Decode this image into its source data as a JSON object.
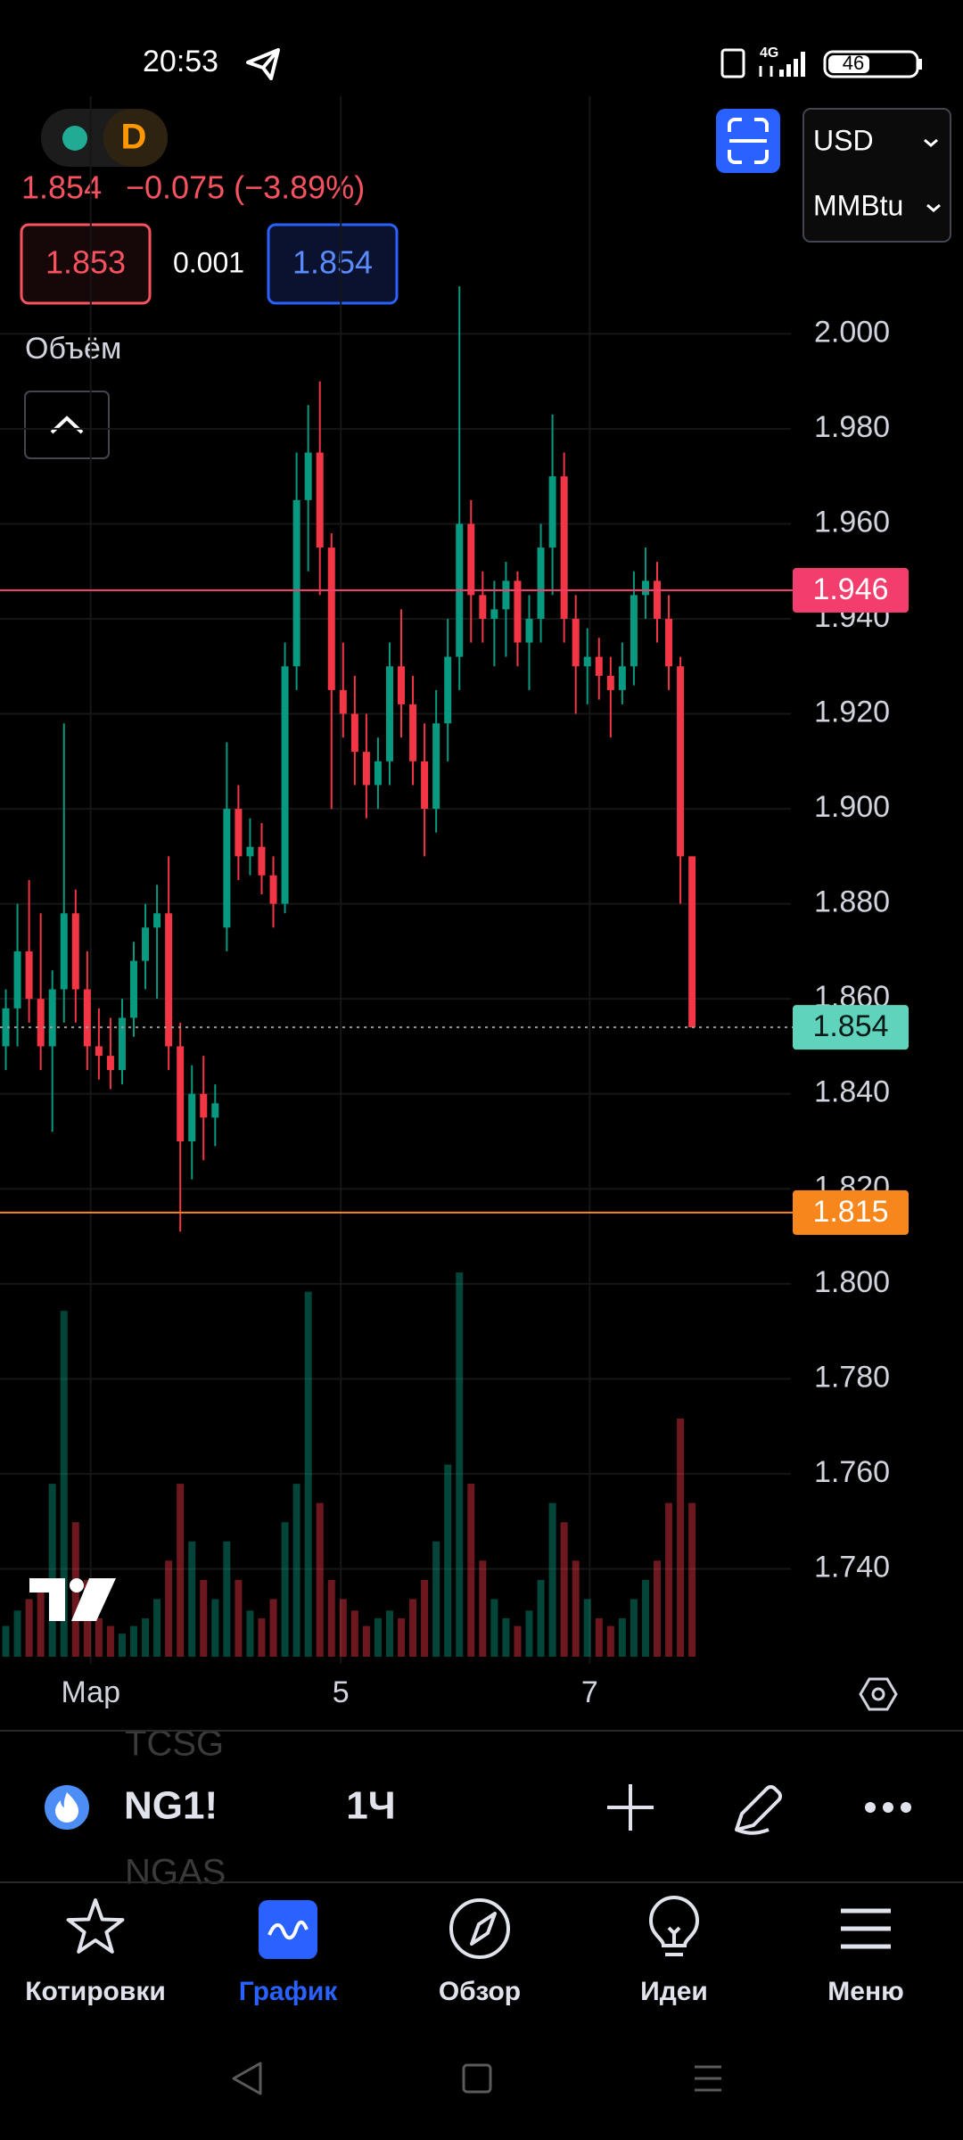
{
  "status_bar": {
    "time": "20:53",
    "network": "4G",
    "battery": "46"
  },
  "header": {
    "interval_badge": "D",
    "last_price": "1.854",
    "change": "−0.075 (−3.89%)",
    "sell": "1.853",
    "spread": "0.001",
    "buy": "1.854",
    "currency": "USD",
    "unit": "MMBtu",
    "volume_label": "Объём"
  },
  "chart_data": {
    "type": "candlestick",
    "up_color": "#089981",
    "down_color": "#f23645",
    "open": [
      1.85,
      1.858,
      1.87,
      1.86,
      1.85,
      1.862,
      1.878,
      1.862,
      1.85,
      1.848,
      1.845,
      1.856,
      1.868,
      1.875,
      1.878,
      1.85,
      1.83,
      1.84,
      1.835,
      1.875,
      1.9,
      1.89,
      1.892,
      1.886,
      1.88,
      1.93,
      1.965,
      1.975,
      1.955,
      1.925,
      1.92,
      1.912,
      1.905,
      1.91,
      1.93,
      1.922,
      1.91,
      1.9,
      1.918,
      1.932,
      1.96,
      1.945,
      1.94,
      1.942,
      1.948,
      1.935,
      1.94,
      1.955,
      1.97,
      1.94,
      1.93,
      1.932,
      1.928,
      1.925,
      1.93,
      1.945,
      1.948,
      1.94,
      1.93,
      1.89
    ],
    "high": [
      1.862,
      1.88,
      1.885,
      1.878,
      1.866,
      1.918,
      1.883,
      1.87,
      1.858,
      1.856,
      1.86,
      1.872,
      1.88,
      1.884,
      1.89,
      1.855,
      1.846,
      1.848,
      1.842,
      1.914,
      1.905,
      1.898,
      1.897,
      1.89,
      1.935,
      1.975,
      1.985,
      1.99,
      1.958,
      1.935,
      1.928,
      1.92,
      1.915,
      1.935,
      1.942,
      1.928,
      1.918,
      1.925,
      1.94,
      2.01,
      1.965,
      1.95,
      1.948,
      1.952,
      1.95,
      1.945,
      1.96,
      1.983,
      1.975,
      1.945,
      1.938,
      1.936,
      1.932,
      1.935,
      1.95,
      1.955,
      1.952,
      1.945,
      1.932,
      1.89
    ],
    "low": [
      1.845,
      1.85,
      1.855,
      1.845,
      1.832,
      1.855,
      1.855,
      1.845,
      1.843,
      1.841,
      1.842,
      1.852,
      1.862,
      1.86,
      1.845,
      1.811,
      1.822,
      1.826,
      1.829,
      1.87,
      1.885,
      1.886,
      1.882,
      1.875,
      1.878,
      1.925,
      1.95,
      1.945,
      1.9,
      1.915,
      1.905,
      1.898,
      1.9,
      1.905,
      1.915,
      1.905,
      1.89,
      1.895,
      1.91,
      1.925,
      1.935,
      1.935,
      1.93,
      1.932,
      1.93,
      1.925,
      1.935,
      1.945,
      1.935,
      1.92,
      1.922,
      1.923,
      1.915,
      1.922,
      1.926,
      1.94,
      1.935,
      1.925,
      1.88,
      1.854
    ],
    "close": [
      1.858,
      1.87,
      1.86,
      1.85,
      1.862,
      1.878,
      1.862,
      1.85,
      1.848,
      1.845,
      1.856,
      1.868,
      1.875,
      1.878,
      1.85,
      1.83,
      1.84,
      1.835,
      1.838,
      1.9,
      1.89,
      1.892,
      1.886,
      1.88,
      1.93,
      1.965,
      1.975,
      1.955,
      1.925,
      1.92,
      1.912,
      1.905,
      1.91,
      1.93,
      1.922,
      1.91,
      1.9,
      1.918,
      1.932,
      1.96,
      1.945,
      1.94,
      1.942,
      1.948,
      1.935,
      1.94,
      1.955,
      1.97,
      1.94,
      1.93,
      1.932,
      1.928,
      1.925,
      1.93,
      1.945,
      1.948,
      1.94,
      1.93,
      1.89,
      1.854
    ],
    "volume": [
      8,
      12,
      15,
      20,
      45,
      90,
      35,
      20,
      10,
      8,
      6,
      8,
      10,
      15,
      25,
      45,
      30,
      20,
      15,
      30,
      20,
      12,
      10,
      15,
      35,
      45,
      95,
      40,
      20,
      15,
      12,
      8,
      10,
      12,
      10,
      15,
      20,
      30,
      50,
      100,
      45,
      25,
      15,
      10,
      8,
      12,
      20,
      40,
      35,
      25,
      15,
      10,
      8,
      10,
      15,
      20,
      25,
      40,
      62,
      40
    ],
    "vlim": [
      0,
      110
    ],
    "xlim": [
      0,
      68
    ],
    "xticks": [
      {
        "value": 7.8,
        "label": "Мар"
      },
      {
        "value": 29.3,
        "label": "5"
      },
      {
        "value": 50.7,
        "label": "7"
      }
    ],
    "ylim": [
      1.72,
      2.05
    ],
    "yticks": [
      {
        "value": 1.74,
        "label": "1.740"
      },
      {
        "value": 1.76,
        "label": "1.760"
      },
      {
        "value": 1.78,
        "label": "1.780"
      },
      {
        "value": 1.8,
        "label": "1.800"
      },
      {
        "value": 1.82,
        "label": "1.820"
      },
      {
        "value": 1.84,
        "label": "1.840"
      },
      {
        "value": 1.86,
        "label": "1.860"
      },
      {
        "value": 1.88,
        "label": "1.880"
      },
      {
        "value": 1.9,
        "label": "1.900"
      },
      {
        "value": 1.92,
        "label": "1.920"
      },
      {
        "value": 1.94,
        "label": "1.940"
      },
      {
        "value": 1.96,
        "label": "1.960"
      },
      {
        "value": 1.98,
        "label": "1.980"
      },
      {
        "value": 2,
        "label": "2.000"
      }
    ],
    "grid": true,
    "price_lines": [
      {
        "value": 1.946,
        "color": "#f23d6d",
        "line_color": "#f23d6d",
        "text_color": "#ffffff",
        "style": "solid"
      },
      {
        "value": 1.854,
        "color": "#5fd3bc",
        "line_color": "#9a9a9a",
        "text_color": "#0b1a17",
        "style": "dotted"
      },
      {
        "value": 1.815,
        "color": "#f7871c",
        "line_color": "#f7871c",
        "text_color": "#ffffff",
        "style": "solid"
      }
    ]
  },
  "toolbar": {
    "symbol": "NG1!",
    "interval": "1Ч",
    "ghost_above": "TCSG",
    "ghost_below": "NGAS"
  },
  "nav": {
    "items": [
      {
        "label": "Котировки"
      },
      {
        "label": "График"
      },
      {
        "label": "Обзор"
      },
      {
        "label": "Идеи"
      },
      {
        "label": "Меню"
      }
    ],
    "active": 1,
    "active_color": "#2962ff"
  }
}
